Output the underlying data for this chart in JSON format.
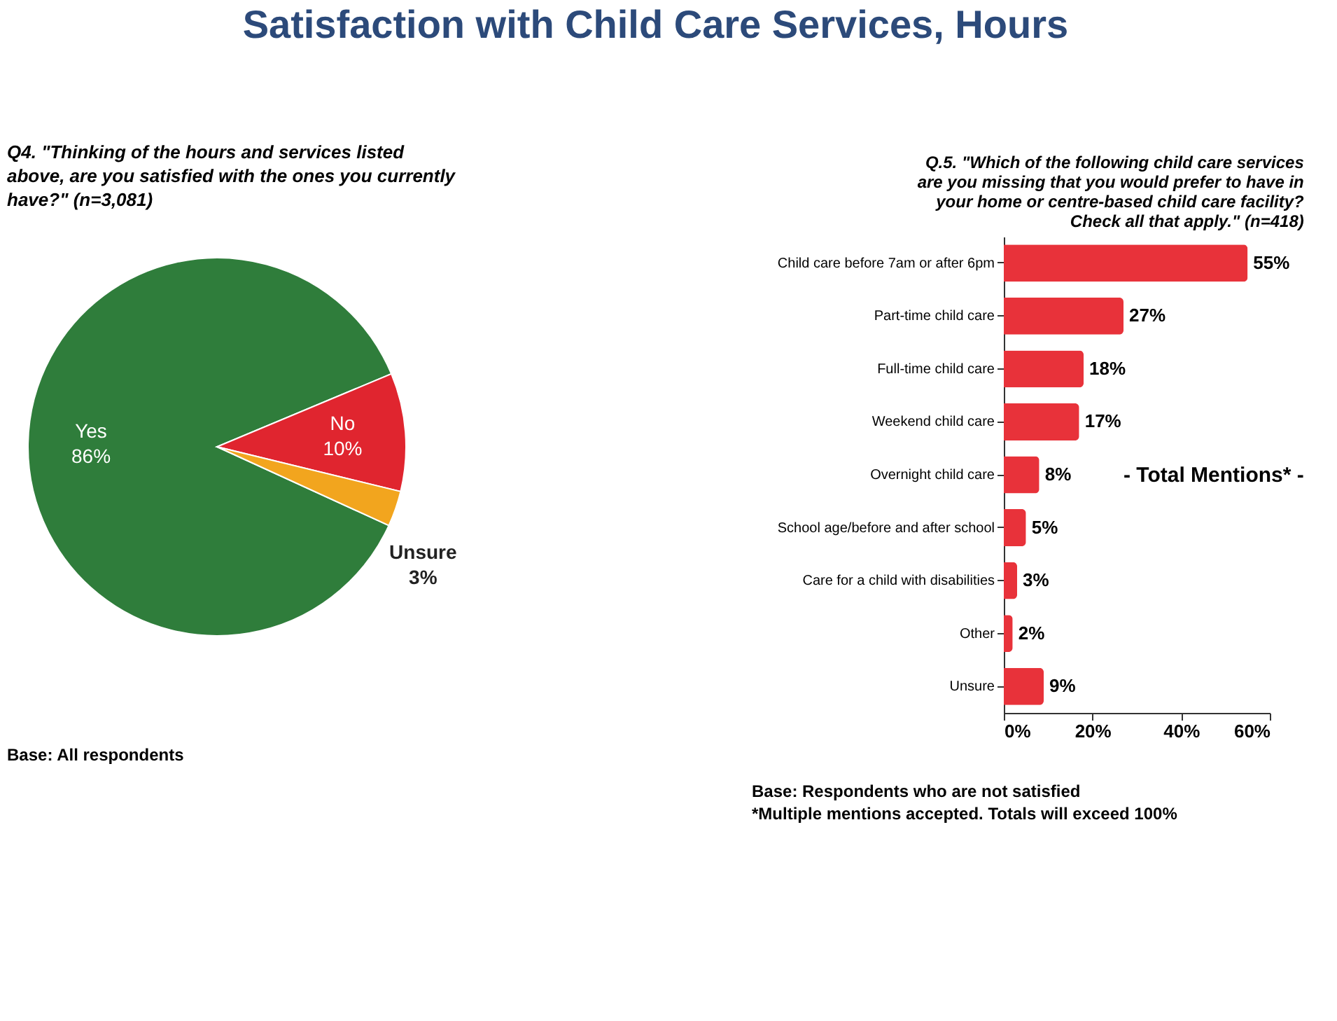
{
  "chart_data": [
    {
      "type": "pie",
      "title": "Satisfaction with Child Care Services, Hours",
      "subtitle": "Q4. \"Thinking of the hours and services listed above, are you satisfied with the ones you currently have?\" (n=3,081)",
      "categories": [
        "Yes",
        "No",
        "Unsure"
      ],
      "values": [
        86,
        10,
        3
      ],
      "value_labels": [
        "86%",
        "10%",
        "3%"
      ],
      "colors": [
        "#2f7d3b",
        "#e0252f",
        "#f2a51e"
      ],
      "annotations": [
        "Base: All respondents"
      ]
    },
    {
      "type": "bar",
      "orientation": "horizontal",
      "title": "Q.5. \"Which of the following child care services are you missing that you would prefer to have in your home or centre-based child care facility? Check all that apply.\" (n=418)",
      "categories": [
        "Child care before 7am or after 6pm",
        "Part-time child care",
        "Full-time child care",
        "Weekend child care",
        "Overnight child care",
        "School age/before and after school",
        "Care for a child with disabilities",
        "Other",
        "Unsure"
      ],
      "values": [
        55,
        27,
        18,
        17,
        8,
        5,
        3,
        2,
        9
      ],
      "value_labels": [
        "55%",
        "27%",
        "18%",
        "17%",
        "8%",
        "5%",
        "3%",
        "2%",
        "9%"
      ],
      "color": "#e8323a",
      "xlim": [
        0,
        60
      ],
      "xticks": [
        {
          "value": 0,
          "label": "0%"
        },
        {
          "value": 20,
          "label": "20%"
        },
        {
          "value": 40,
          "label": "40%"
        },
        {
          "value": 60,
          "label": "60%"
        }
      ],
      "grid": false,
      "annotations": [
        "- Total Mentions* -",
        "Base: Respondents who are not satisfied",
        "*Multiple mentions accepted. Totals will exceed 100%"
      ]
    }
  ]
}
